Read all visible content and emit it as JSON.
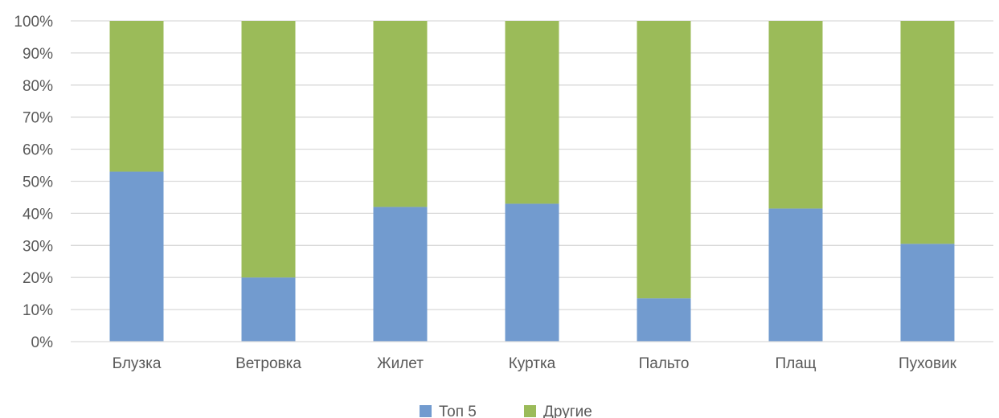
{
  "chart_data": {
    "type": "bar",
    "stacked": "percent",
    "categories": [
      "Блузка",
      "Ветровка",
      "Жилет",
      "Куртка",
      "Пальто",
      "Плащ",
      "Пуховик"
    ],
    "series": [
      {
        "name": "Топ 5",
        "color": "#729BCF",
        "values": [
          53,
          20,
          42,
          43,
          13.5,
          41.5,
          30.5
        ]
      },
      {
        "name": "Другие",
        "color": "#9BBB59",
        "values": [
          47,
          80,
          58,
          57,
          86.5,
          58.5,
          69.5
        ]
      }
    ],
    "yticks": [
      "0%",
      "10%",
      "20%",
      "30%",
      "40%",
      "50%",
      "60%",
      "70%",
      "80%",
      "90%",
      "100%"
    ],
    "ylim": [
      0,
      100
    ],
    "grid": true,
    "legend_position": "bottom",
    "gridline_color": "#D9D9D9"
  }
}
